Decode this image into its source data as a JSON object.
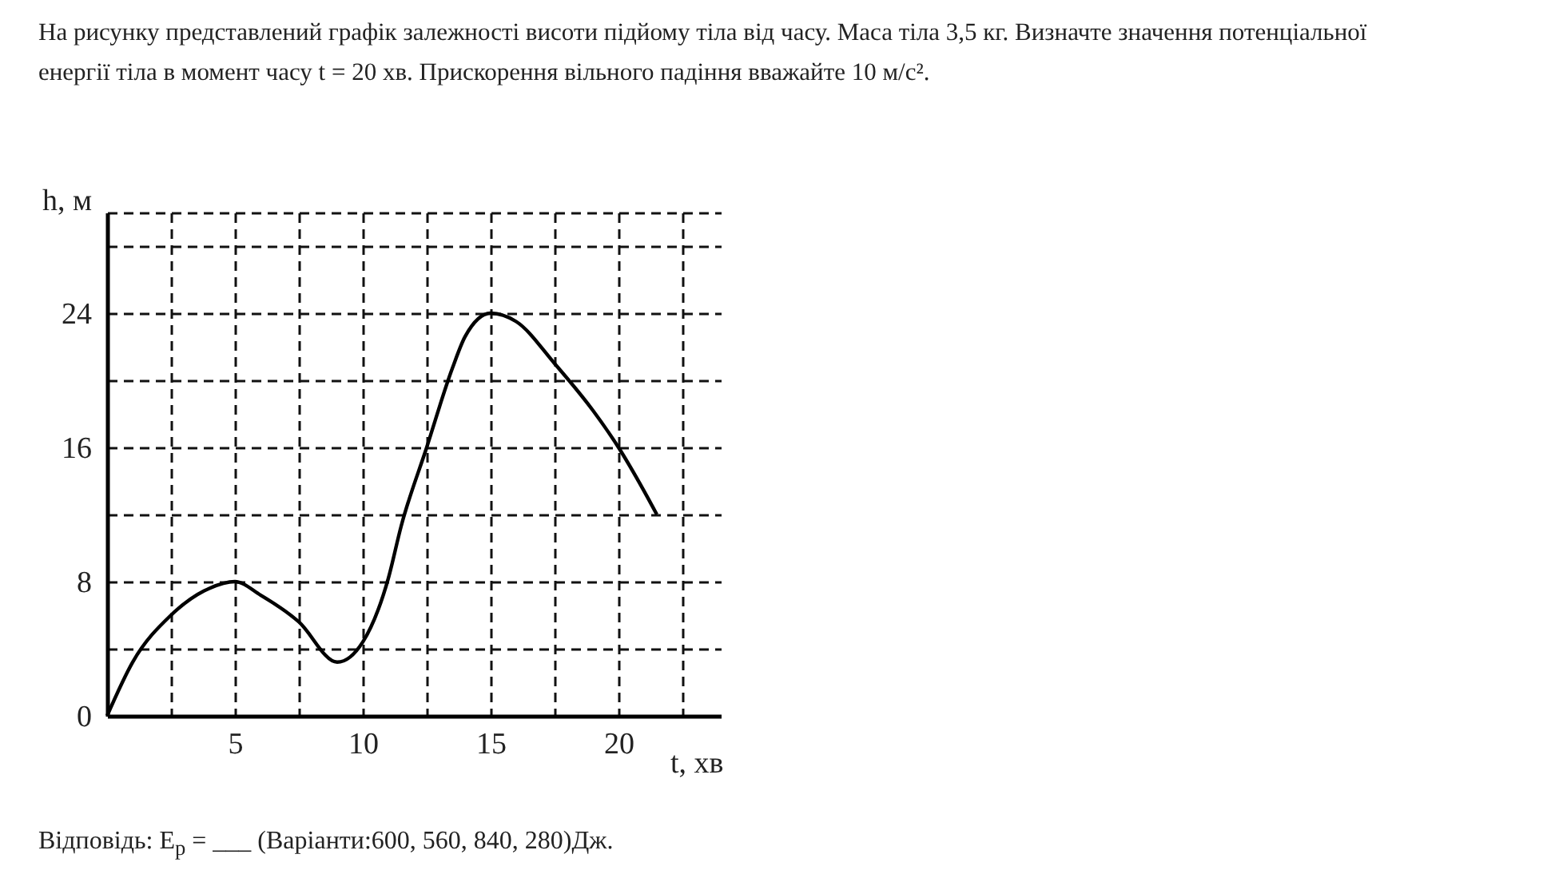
{
  "chart_data": {
    "type": "line",
    "title": "На рисунку представлений графік залежності висоти підйому тіла від часу. Маса тіла 3,5 кг. Визначте значення потенціальної енергії тіла в момент часу t = 20 хв. Прискорення вільного падіння вважайте 10 м/с².",
    "xlabel": "t, хв",
    "ylabel": "h, м",
    "annotations": [
      "Відповідь: E$_{p}$ = ___ (Варіанти:600, 560, 840, 280)Дж."
    ],
    "x": [
      0,
      1,
      2.5,
      4,
      5,
      6,
      7.5,
      9,
      10,
      11,
      11.5,
      12.5,
      13.5,
      14,
      15,
      16,
      17.5,
      19,
      20,
      21,
      21.5
    ],
    "series": [
      {
        "color": "#000000",
        "values": [
          0,
          3.2,
          6,
          7.6,
          8,
          7.2,
          5.6,
          3.2,
          4.4,
          8.2,
          11.3,
          16,
          20.7,
          22.6,
          24,
          23.5,
          21,
          18.2,
          16,
          13.4,
          12
        ]
      }
    ],
    "xlim": [
      0,
      24
    ],
    "ylim": [
      0,
      30
    ],
    "xticks": [
      {
        "value": 2.5,
        "label": null
      },
      5,
      {
        "value": 7.5,
        "label": null
      },
      10,
      {
        "value": 12.5,
        "label": null
      },
      15,
      {
        "value": 17.5,
        "label": null
      },
      20,
      {
        "value": 22.5,
        "label": null
      }
    ],
    "yticks": [
      0,
      {
        "value": 4,
        "label": null
      },
      8,
      {
        "value": 12,
        "label": null
      },
      16,
      {
        "value": 20,
        "label": null
      },
      24,
      {
        "value": 28,
        "label": null
      },
      {
        "value": 30,
        "label": null
      }
    ],
    "grid": true,
    "marker": "none",
    "line_style": "solid"
  }
}
